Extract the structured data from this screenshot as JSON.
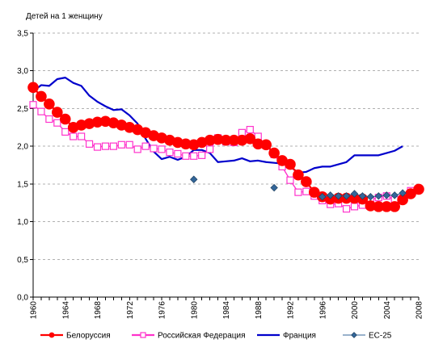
{
  "chart_data": {
    "type": "line",
    "title": "",
    "ylabel": "Детей на 1 женщину",
    "xlabel": "",
    "ylim": [
      0,
      3.5
    ],
    "xlim": [
      1960,
      2008
    ],
    "yticks": [
      "0,0",
      "0,5",
      "1,0",
      "1,5",
      "2,0",
      "2,5",
      "3,0",
      "3,5"
    ],
    "xticks": [
      "1960",
      "1964",
      "1968",
      "1972",
      "1976",
      "1980",
      "1984",
      "1988",
      "1992",
      "1996",
      "2000",
      "2004",
      "2008"
    ],
    "grid": true,
    "legend_position": "bottom",
    "series": [
      {
        "name": "Белоруссия",
        "color": "#ff0000",
        "marker": "circle",
        "points": [
          [
            1960,
            2.78
          ],
          [
            1961,
            2.66
          ],
          [
            1962,
            2.56
          ],
          [
            1963,
            2.45
          ],
          [
            1964,
            2.36
          ],
          [
            1965,
            2.25
          ],
          [
            1966,
            2.28
          ],
          [
            1967,
            2.3
          ],
          [
            1968,
            2.32
          ],
          [
            1969,
            2.33
          ],
          [
            1970,
            2.31
          ],
          [
            1971,
            2.28
          ],
          [
            1972,
            2.25
          ],
          [
            1973,
            2.22
          ],
          [
            1974,
            2.18
          ],
          [
            1975,
            2.14
          ],
          [
            1976,
            2.11
          ],
          [
            1977,
            2.08
          ],
          [
            1978,
            2.05
          ],
          [
            1979,
            2.03
          ],
          [
            1980,
            2.02
          ],
          [
            1981,
            2.05
          ],
          [
            1982,
            2.08
          ],
          [
            1983,
            2.09
          ],
          [
            1984,
            2.08
          ],
          [
            1985,
            2.08
          ],
          [
            1986,
            2.08
          ],
          [
            1987,
            2.1
          ],
          [
            1988,
            2.03
          ],
          [
            1989,
            2.02
          ],
          [
            1990,
            1.91
          ],
          [
            1991,
            1.81
          ],
          [
            1992,
            1.76
          ],
          [
            1993,
            1.62
          ],
          [
            1994,
            1.53
          ],
          [
            1995,
            1.39
          ],
          [
            1996,
            1.33
          ],
          [
            1997,
            1.3
          ],
          [
            1998,
            1.31
          ],
          [
            1999,
            1.31
          ],
          [
            2000,
            1.31
          ],
          [
            2001,
            1.3
          ],
          [
            2002,
            1.21
          ],
          [
            2003,
            1.2
          ],
          [
            2004,
            1.2
          ],
          [
            2005,
            1.2
          ],
          [
            2006,
            1.29
          ],
          [
            2007,
            1.37
          ],
          [
            2008,
            1.43
          ]
        ]
      },
      {
        "name": "Российская Федерация",
        "color": "#ff33cc",
        "marker": "square",
        "points": [
          [
            1960,
            2.55
          ],
          [
            1961,
            2.46
          ],
          [
            1962,
            2.36
          ],
          [
            1963,
            2.31
          ],
          [
            1964,
            2.19
          ],
          [
            1965,
            2.13
          ],
          [
            1966,
            2.13
          ],
          [
            1967,
            2.03
          ],
          [
            1968,
            1.99
          ],
          [
            1969,
            2.0
          ],
          [
            1970,
            2.0
          ],
          [
            1971,
            2.02
          ],
          [
            1972,
            2.02
          ],
          [
            1973,
            1.96
          ],
          [
            1974,
            2.0
          ],
          [
            1975,
            1.97
          ],
          [
            1976,
            1.96
          ],
          [
            1977,
            1.92
          ],
          [
            1978,
            1.9
          ],
          [
            1979,
            1.87
          ],
          [
            1980,
            1.87
          ],
          [
            1981,
            1.88
          ],
          [
            1982,
            1.96
          ],
          [
            1983,
            2.11
          ],
          [
            1984,
            2.06
          ],
          [
            1985,
            2.05
          ],
          [
            1986,
            2.18
          ],
          [
            1987,
            2.22
          ],
          [
            1988,
            2.13
          ],
          [
            1989,
            2.01
          ],
          [
            1990,
            1.89
          ],
          [
            1991,
            1.73
          ],
          [
            1992,
            1.55
          ],
          [
            1993,
            1.39
          ],
          [
            1994,
            1.4
          ],
          [
            1995,
            1.34
          ],
          [
            1996,
            1.28
          ],
          [
            1997,
            1.23
          ],
          [
            1998,
            1.24
          ],
          [
            1999,
            1.17
          ],
          [
            2000,
            1.2
          ],
          [
            2001,
            1.22
          ],
          [
            2002,
            1.29
          ],
          [
            2003,
            1.32
          ],
          [
            2004,
            1.34
          ],
          [
            2005,
            1.29
          ],
          [
            2006,
            1.31
          ],
          [
            2007,
            1.41
          ]
        ]
      },
      {
        "name": "Франция",
        "color": "#0000cc",
        "marker": "none",
        "points": [
          [
            1960,
            2.73
          ],
          [
            1961,
            2.81
          ],
          [
            1962,
            2.8
          ],
          [
            1963,
            2.89
          ],
          [
            1964,
            2.91
          ],
          [
            1965,
            2.84
          ],
          [
            1966,
            2.8
          ],
          [
            1967,
            2.67
          ],
          [
            1968,
            2.59
          ],
          [
            1969,
            2.53
          ],
          [
            1970,
            2.48
          ],
          [
            1971,
            2.49
          ],
          [
            1972,
            2.41
          ],
          [
            1973,
            2.3
          ],
          [
            1974,
            2.1
          ],
          [
            1975,
            1.93
          ],
          [
            1976,
            1.83
          ],
          [
            1977,
            1.86
          ],
          [
            1978,
            1.82
          ],
          [
            1979,
            1.86
          ],
          [
            1980,
            1.95
          ],
          [
            1981,
            1.95
          ],
          [
            1982,
            1.91
          ],
          [
            1983,
            1.79
          ],
          [
            1984,
            1.8
          ],
          [
            1985,
            1.81
          ],
          [
            1986,
            1.84
          ],
          [
            1987,
            1.8
          ],
          [
            1988,
            1.81
          ],
          [
            1989,
            1.79
          ],
          [
            1990,
            1.78
          ],
          [
            1991,
            1.77
          ],
          [
            1992,
            1.73
          ],
          [
            1993,
            1.65
          ],
          [
            1994,
            1.66
          ],
          [
            1995,
            1.71
          ],
          [
            1996,
            1.73
          ],
          [
            1997,
            1.73
          ],
          [
            1998,
            1.76
          ],
          [
            1999,
            1.79
          ],
          [
            2000,
            1.88
          ],
          [
            2001,
            1.88
          ],
          [
            2002,
            1.88
          ],
          [
            2003,
            1.88
          ],
          [
            2004,
            1.91
          ],
          [
            2005,
            1.94
          ],
          [
            2006,
            2.0
          ]
        ]
      },
      {
        "name": "ЕС-25",
        "color": "#336699",
        "marker": "diamond",
        "points": [
          [
            1980,
            1.56
          ],
          [
            1990,
            1.45
          ],
          [
            1996,
            1.33
          ],
          [
            1997,
            1.35
          ],
          [
            1998,
            1.34
          ],
          [
            1999,
            1.34
          ],
          [
            2000,
            1.37
          ],
          [
            2001,
            1.34
          ],
          [
            2002,
            1.33
          ],
          [
            2003,
            1.34
          ],
          [
            2004,
            1.35
          ],
          [
            2005,
            1.35
          ],
          [
            2006,
            1.38
          ]
        ]
      }
    ]
  }
}
